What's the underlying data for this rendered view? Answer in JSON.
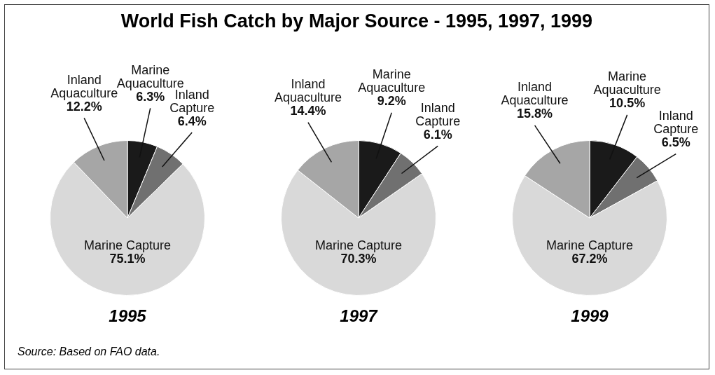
{
  "chart_data": [
    {
      "type": "pie",
      "title": "World Fish Catch by Major Source - 1995, 1997, 1999",
      "xlabel": "1995",
      "annotations": [
        "Source:  Based on FAO data."
      ],
      "categories": [
        "Marine Aquaculture",
        "Inland Capture",
        "Marine Capture",
        "Inland Aquaculture"
      ],
      "values": [
        6.3,
        6.4,
        75.1,
        12.2
      ],
      "colors": [
        "#1a1a1a",
        "#707070",
        "#d9d9d9",
        "#a6a6a6"
      ],
      "value_labels": [
        "6.3%",
        "6.4%",
        "75.1%",
        "12.2%"
      ]
    },
    {
      "type": "pie",
      "xlabel": "1997",
      "categories": [
        "Marine Aquaculture",
        "Inland Capture",
        "Marine Capture",
        "Inland Aquaculture"
      ],
      "values": [
        9.2,
        6.1,
        70.3,
        14.4
      ],
      "colors": [
        "#1a1a1a",
        "#707070",
        "#d9d9d9",
        "#a6a6a6"
      ],
      "value_labels": [
        "9.2%",
        "6.1%",
        "70.3%",
        "14.4%"
      ]
    },
    {
      "type": "pie",
      "xlabel": "1999",
      "categories": [
        "Marine Aquaculture",
        "Inland Capture",
        "Marine Capture",
        "Inland Aquaculture"
      ],
      "values": [
        10.5,
        6.5,
        67.2,
        15.8
      ],
      "colors": [
        "#1a1a1a",
        "#707070",
        "#d9d9d9",
        "#a6a6a6"
      ],
      "value_labels": [
        "10.5%",
        "6.5%",
        "67.2%",
        "15.8%"
      ]
    }
  ]
}
